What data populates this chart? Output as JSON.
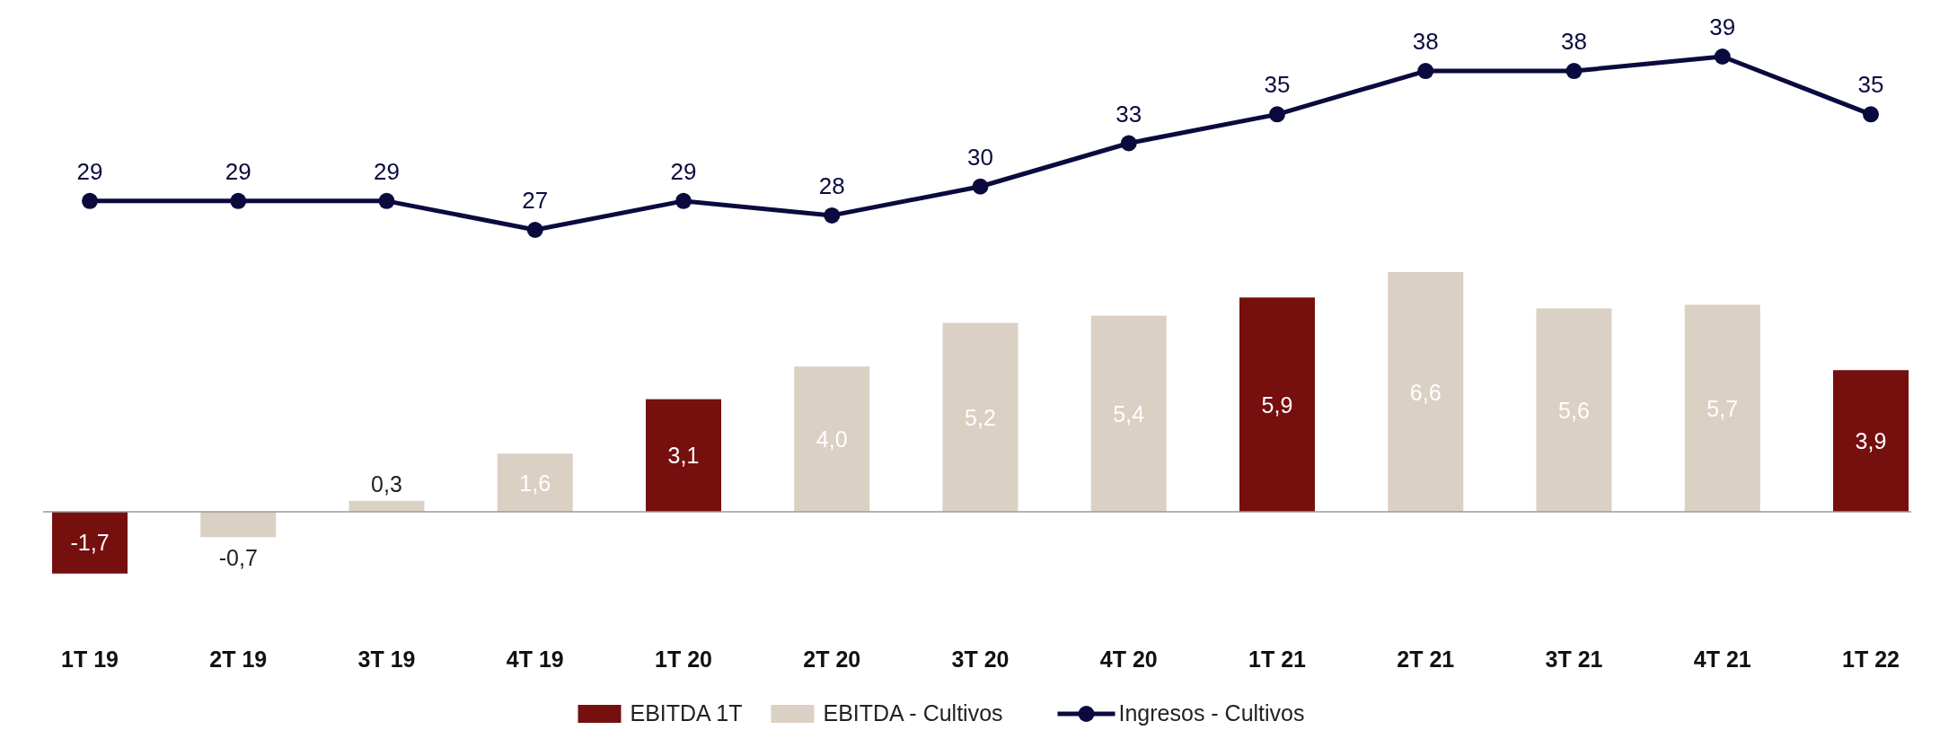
{
  "chart_data": [
    {
      "type": "line",
      "categories": [
        null,
        null,
        null,
        null,
        null,
        null,
        null,
        null,
        null,
        null,
        null,
        null,
        null
      ],
      "series": [
        {
          "name": "Ingresos - Cultivos",
          "color": "#0b0a3e",
          "values": [
            29,
            29,
            29,
            27,
            29,
            28,
            30,
            33,
            35,
            38,
            38,
            39,
            35
          ],
          "value_labels": [
            "29",
            "29",
            "29",
            "27",
            "29",
            "28",
            "30",
            "33",
            "35",
            "38",
            "38",
            "39",
            "35"
          ]
        }
      ],
      "marker": "circle",
      "legend": "bottom"
    },
    {
      "type": "bar",
      "categories": [
        "1T 19",
        "2T 19",
        "3T 19",
        "4T 19",
        "1T 20",
        "2T 20",
        "3T 20",
        "4T 20",
        "1T 21",
        "2T 21",
        "3T 21",
        "4T 21",
        "1T 22"
      ],
      "series": [
        {
          "name": "EBITDA 1T",
          "color": "#75100f",
          "values": [
            -1.7,
            null,
            null,
            null,
            3.1,
            null,
            null,
            null,
            5.9,
            null,
            null,
            null,
            3.9
          ],
          "value_labels": [
            "-1,7",
            null,
            null,
            null,
            "3,1",
            null,
            null,
            null,
            "5,9",
            null,
            null,
            null,
            "3,9"
          ]
        },
        {
          "name": "EBITDA - Cultivos",
          "color": "#dbd0c4",
          "values": [
            null,
            -0.7,
            0.3,
            1.6,
            null,
            4.0,
            5.2,
            5.4,
            null,
            6.6,
            5.6,
            5.7,
            null
          ],
          "value_labels": [
            null,
            "-0,7",
            "0,3",
            "1,6",
            null,
            "4,0",
            "5,2",
            "5,4",
            null,
            "6,6",
            "5,6",
            "5,7",
            null
          ]
        }
      ],
      "legend": "bottom"
    }
  ]
}
